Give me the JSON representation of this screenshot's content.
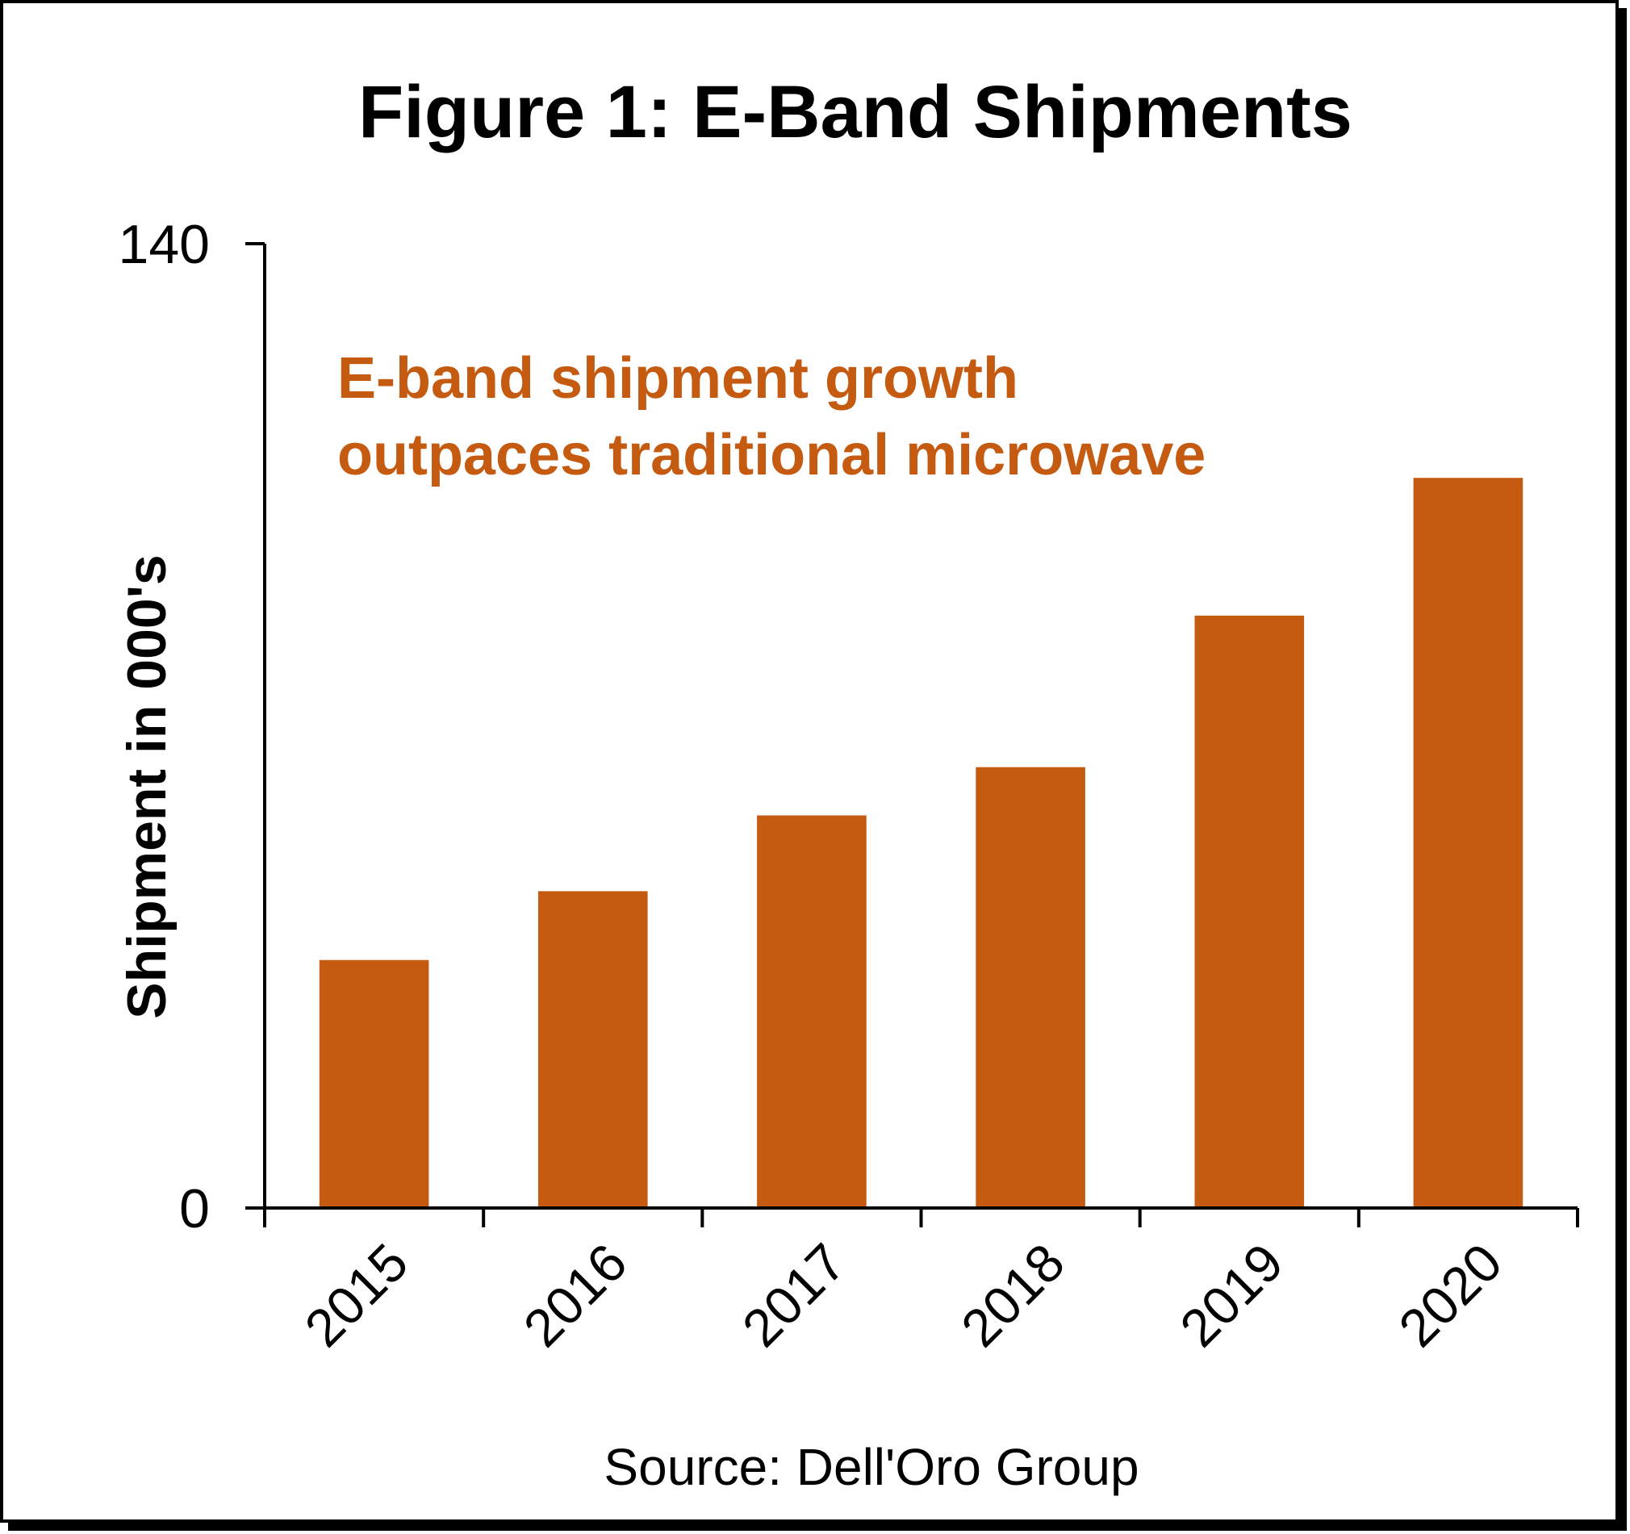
{
  "chart_data": {
    "type": "bar",
    "title": "Figure 1: E-Band Shipments",
    "annotation": [
      "E-band shipment growth",
      "outpaces traditional microwave"
    ],
    "xlabel": "",
    "ylabel": "Shipment in 000's",
    "source": "Source: Dell'Oro Group",
    "categories": [
      "2015",
      "2016",
      "2017",
      "2018",
      "2019",
      "2020"
    ],
    "values": [
      36,
      46,
      57,
      64,
      86,
      106
    ],
    "ylim": [
      0,
      140
    ],
    "yticks": [
      0,
      140
    ],
    "grid": false,
    "legend": "none"
  },
  "colors": {
    "bar": "#c55a11",
    "annotation": "#c55a11",
    "text": "#000000",
    "axis": "#000000",
    "frame": "#000000",
    "shadow": "#000000"
  }
}
